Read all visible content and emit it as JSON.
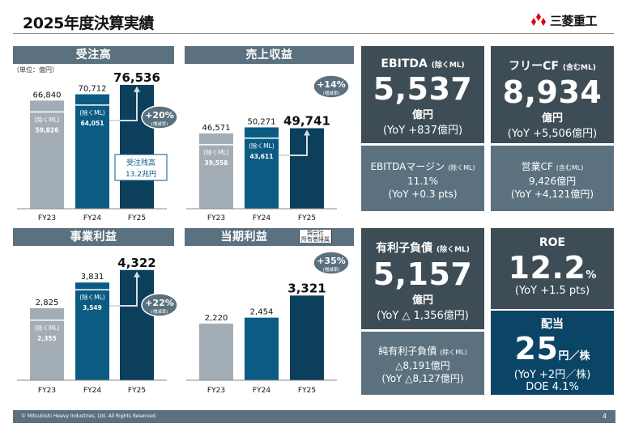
{
  "header": {
    "title": "2025年度決算実績",
    "logo_text": "三菱重工"
  },
  "unit_note": "（単位：億円）",
  "footer": {
    "copyright": "© Mitsubishi Heavy Industries, Ltd.  All Rights Reserved.",
    "page": "4"
  },
  "colors": {
    "fy23": "#a3adb5",
    "fy24": "#0b5b82",
    "fy25": "#0b3f5b",
    "header": "#5b717f",
    "card_dark": "#3e4c55",
    "card_navy": "#0b4566"
  },
  "chart_data": [
    {
      "type": "bar",
      "title": "受注高",
      "categories": [
        "FY23",
        "FY24",
        "FY25"
      ],
      "values": [
        66840,
        70712,
        76536
      ],
      "value_labels": [
        "66,840",
        "70,712",
        "76,536"
      ],
      "sub_label": "(除くML)",
      "sub_values": [
        59826,
        64051,
        null
      ],
      "sub_value_labels": [
        "59,826",
        "64,051",
        ""
      ],
      "growth": {
        "value": "+20%",
        "note": "(増減率)"
      },
      "callout": "受注残高\n13.2兆円",
      "callout_lines": [
        "受注残高",
        "13.2兆円"
      ],
      "ylim": [
        0,
        80000
      ]
    },
    {
      "type": "bar",
      "title": "売上収益",
      "categories": [
        "FY23",
        "FY24",
        "FY25"
      ],
      "values": [
        46571,
        50271,
        49741
      ],
      "value_labels": [
        "46,571",
        "50,271",
        "49,741"
      ],
      "sub_label": "(除くML)",
      "sub_values": [
        39558,
        43611,
        null
      ],
      "sub_value_labels": [
        "39,558",
        "43,611",
        ""
      ],
      "growth": {
        "value": "+14%",
        "note": "(増減率)"
      },
      "ylim": [
        0,
        80000
      ]
    },
    {
      "type": "bar",
      "title": "事業利益",
      "categories": [
        "FY23",
        "FY24",
        "FY25"
      ],
      "values": [
        2825,
        3831,
        4322
      ],
      "value_labels": [
        "2,825",
        "3,831",
        "4,322"
      ],
      "sub_label": "(除くML)",
      "sub_values": [
        2355,
        3549,
        null
      ],
      "sub_value_labels": [
        "2,355",
        "3,549",
        ""
      ],
      "growth": {
        "value": "+22%",
        "note": "(増減率)"
      },
      "ylim": [
        0,
        4600
      ]
    },
    {
      "type": "bar",
      "title": "当期利益",
      "title_note_lines": [
        "親会社",
        "所有者帰属"
      ],
      "categories": [
        "FY23",
        "FY24",
        "FY25"
      ],
      "values": [
        2220,
        2454,
        3321
      ],
      "value_labels": [
        "2,220",
        "2,454",
        "3,321"
      ],
      "growth": {
        "value": "+35%",
        "note": "(増減率)"
      },
      "ylim": [
        0,
        4600
      ]
    }
  ],
  "cards": {
    "ebitda": {
      "title": "EBITDA",
      "title_note": "(除くML)",
      "value": "5,537",
      "unit": "億円",
      "yoy": "(YoY +837億円)"
    },
    "ebitda_margin": {
      "title": "EBITDAマージン",
      "title_note": "(除くML)",
      "value": "11.1%",
      "yoy": "(YoY +0.3 pts)"
    },
    "fcf": {
      "title": "フリーCF",
      "title_note": "(含むML)",
      "value": "8,934",
      "unit": "億円",
      "yoy": "(YoY +5,506億円)"
    },
    "op_cf": {
      "title": "営業CF",
      "title_note": "(含むML)",
      "value": "9,426億円",
      "yoy": "(YoY +4,121億円)"
    },
    "debt": {
      "title": "有利子負債",
      "title_note": "(除くML)",
      "value": "5,157",
      "unit": "億円",
      "yoy": "(YoY △ 1,356億円)"
    },
    "net_debt": {
      "title": "純有利子負債",
      "title_note": "(除くML)",
      "value": "△8,191億円",
      "yoy": "(YoY △8,127億円)"
    },
    "roe": {
      "title": "ROE",
      "value": "12.2",
      "unit": "%",
      "yoy": "(YoY +1.5 pts)"
    },
    "dividend": {
      "title": "配当",
      "value": "25",
      "unit": "円／株",
      "yoy": "(YoY +2円／株)",
      "doe": "DOE 4.1%"
    }
  }
}
